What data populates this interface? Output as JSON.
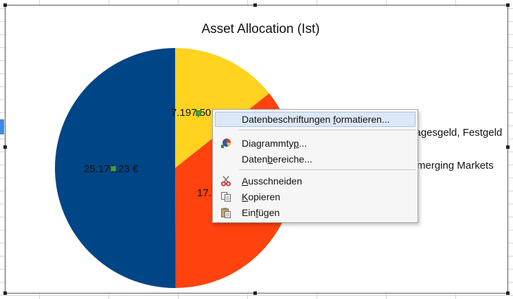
{
  "chart": {
    "title": "Asset Allocation (Ist)",
    "legend": [
      {
        "label": "Tagesgeld, Festgeld",
        "color": "#ffd320"
      },
      {
        "label": "Emerging Markets",
        "color": "#ff420e"
      }
    ]
  },
  "chart_data": {
    "type": "pie",
    "title": "Asset Allocation (Ist)",
    "slices": [
      {
        "name": "Tagesgeld, Festgeld",
        "value": 7197.5,
        "label": "7.197,50 €",
        "color": "#ffd320"
      },
      {
        "name": "Emerging Markets",
        "value": 17900,
        "label": "17.",
        "color": "#ff420e"
      },
      {
        "name": "",
        "value": 25170.23,
        "label": "25.170,23 €",
        "color": "#004586"
      }
    ],
    "legend_position": "right"
  },
  "menu": {
    "items": [
      {
        "pre": "Datenbeschriftungen ",
        "mn": "f",
        "post": "ormatieren...",
        "icon": ""
      },
      {
        "pre": "Diagrammty",
        "mn": "p",
        "post": "...",
        "icon": "chart-type-icon"
      },
      {
        "pre": "Daten",
        "mn": "b",
        "post": "ereiche...",
        "icon": ""
      },
      {
        "pre": "",
        "mn": "A",
        "post": "usschneiden",
        "icon": "scissors-icon"
      },
      {
        "pre": "",
        "mn": "K",
        "post": "opieren",
        "icon": "copy-icon"
      },
      {
        "pre": "Ein",
        "mn": "f",
        "post": "ügen",
        "icon": "paste-icon"
      }
    ]
  }
}
